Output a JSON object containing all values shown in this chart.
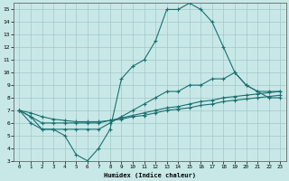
{
  "xlabel": "Humidex (Indice chaleur)",
  "xlim": [
    -0.5,
    23.5
  ],
  "ylim": [
    3,
    15.5
  ],
  "yticks": [
    3,
    4,
    5,
    6,
    7,
    8,
    9,
    10,
    11,
    12,
    13,
    14,
    15
  ],
  "xticks": [
    0,
    1,
    2,
    3,
    4,
    5,
    6,
    7,
    8,
    9,
    10,
    11,
    12,
    13,
    14,
    15,
    16,
    17,
    18,
    19,
    20,
    21,
    22,
    23
  ],
  "line_color": "#1a7070",
  "bg_color": "#c8e8e8",
  "grid_color": "#a0c8c8",
  "marker": "+",
  "line1_x": [
    0,
    1,
    2,
    3,
    4,
    5,
    6,
    7,
    8,
    9,
    10,
    11,
    12,
    13,
    14,
    15,
    16,
    17,
    18,
    19,
    20,
    21,
    22,
    23
  ],
  "line1_y": [
    7,
    6,
    5.5,
    5.5,
    5,
    3.5,
    3,
    4,
    5.5,
    9.5,
    10.5,
    11,
    12.5,
    15,
    15,
    15.5,
    15,
    14,
    12,
    10,
    9,
    8.5,
    8,
    8
  ],
  "line2_x": [
    0,
    1,
    2,
    3,
    4,
    5,
    6,
    7,
    8,
    9,
    10,
    11,
    12,
    13,
    14,
    15,
    16,
    17,
    18,
    19,
    20,
    21,
    22,
    23
  ],
  "line2_y": [
    7,
    6.5,
    5.5,
    5.5,
    5.5,
    5.5,
    5.5,
    5.5,
    6,
    6.5,
    7,
    7.5,
    8,
    8.5,
    8.5,
    9,
    9,
    9.5,
    9.5,
    10,
    9,
    8.5,
    8.5,
    8.5
  ],
  "line3_x": [
    0,
    1,
    2,
    3,
    4,
    5,
    6,
    7,
    8,
    9,
    10,
    11,
    12,
    13,
    14,
    15,
    16,
    17,
    18,
    19,
    20,
    21,
    22,
    23
  ],
  "line3_y": [
    7,
    6.5,
    6,
    6,
    6,
    6,
    6,
    6,
    6.2,
    6.4,
    6.6,
    6.8,
    7,
    7.2,
    7.3,
    7.5,
    7.7,
    7.8,
    8,
    8.1,
    8.2,
    8.3,
    8.4,
    8.5
  ],
  "line4_x": [
    0,
    1,
    2,
    3,
    4,
    5,
    6,
    7,
    8,
    9,
    10,
    11,
    12,
    13,
    14,
    15,
    16,
    17,
    18,
    19,
    20,
    21,
    22,
    23
  ],
  "line4_y": [
    7,
    6.8,
    6.5,
    6.3,
    6.2,
    6.1,
    6.1,
    6.1,
    6.2,
    6.3,
    6.5,
    6.6,
    6.8,
    7.0,
    7.1,
    7.2,
    7.4,
    7.5,
    7.7,
    7.8,
    7.9,
    8.0,
    8.1,
    8.2
  ]
}
